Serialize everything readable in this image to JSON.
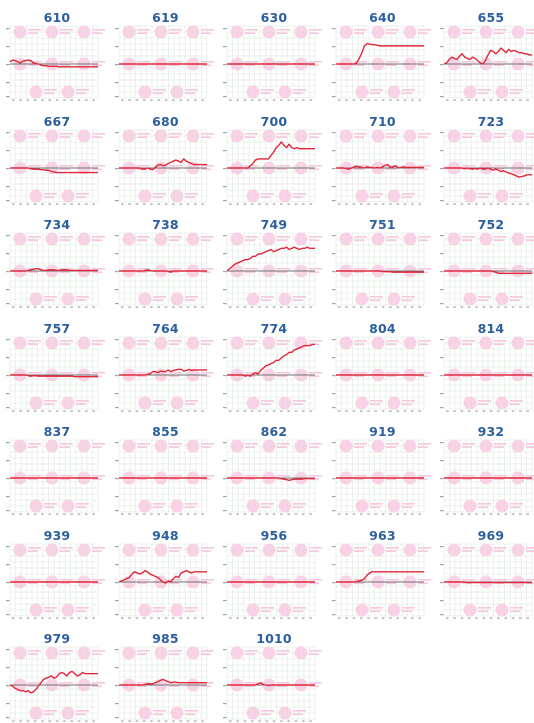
{
  "colors": {
    "title": "#2b5f9e",
    "series": "#e0283c",
    "baseline": "#707070",
    "grid": "#d8e6d8",
    "watermark": "#f7c6df",
    "axis_text": "#9aa3ad"
  },
  "watermark_icon": "circle-logo",
  "chart_data": [
    {
      "type": "line",
      "title": "610",
      "values": [
        0.2,
        0.35,
        0.3,
        0.2,
        0.1,
        0.25,
        0.3,
        0.35,
        0.3,
        0.1,
        0.05,
        0.0,
        -0.1,
        -0.15,
        -0.15,
        -0.2,
        -0.2,
        -0.2,
        -0.2,
        -0.25,
        -0.25,
        -0.25,
        -0.25,
        -0.25,
        -0.25,
        -0.25,
        -0.25,
        -0.25,
        -0.25,
        -0.25,
        -0.25,
        -0.25,
        -0.25,
        -0.25,
        -0.25
      ],
      "ylim": [
        -3,
        3
      ]
    },
    {
      "type": "line",
      "title": "619",
      "values": [
        0,
        0,
        0,
        0,
        0,
        0,
        0,
        0,
        0,
        0,
        0,
        0,
        0,
        0,
        0,
        0,
        0,
        0,
        0,
        0,
        0,
        0,
        0,
        0,
        0,
        0,
        0,
        0,
        0,
        0,
        0,
        0,
        0,
        0,
        0
      ],
      "ylim": [
        -3,
        3
      ]
    },
    {
      "type": "line",
      "title": "630",
      "values": [
        0,
        0,
        0,
        0,
        0,
        0,
        0,
        0,
        0,
        0,
        0,
        0,
        0,
        0,
        0,
        0,
        0,
        0,
        0,
        0,
        0,
        0,
        0,
        0,
        0,
        0,
        0,
        0,
        0,
        0,
        0,
        0,
        0,
        0,
        0
      ],
      "ylim": [
        -3,
        3
      ]
    },
    {
      "type": "line",
      "title": "640",
      "values": [
        0,
        0,
        0,
        0,
        0,
        0,
        0,
        0,
        0.1,
        0.5,
        1.0,
        1.6,
        1.8,
        1.75,
        1.7,
        1.7,
        1.65,
        1.6,
        1.6,
        1.6,
        1.6,
        1.6,
        1.6,
        1.6,
        1.6,
        1.6,
        1.6,
        1.6,
        1.6,
        1.6,
        1.6,
        1.6,
        1.6,
        1.6,
        1.6
      ],
      "ylim": [
        -3,
        3
      ]
    },
    {
      "type": "line",
      "title": "655",
      "values": [
        0,
        0.1,
        0.4,
        0.6,
        0.5,
        0.4,
        0.7,
        0.9,
        0.6,
        0.5,
        0.4,
        0.6,
        0.5,
        0.3,
        0.1,
        0.0,
        0.3,
        0.8,
        1.2,
        1.1,
        0.9,
        1.1,
        1.4,
        1.2,
        1.0,
        1.3,
        1.1,
        1.2,
        1.1,
        1.0,
        1.0,
        0.9,
        0.9,
        0.8,
        0.8
      ],
      "ylim": [
        -3,
        3
      ]
    },
    {
      "type": "line",
      "title": "667",
      "values": [
        0,
        0,
        0,
        0,
        0,
        0,
        0,
        0,
        -0.05,
        -0.1,
        -0.1,
        -0.1,
        -0.15,
        -0.15,
        -0.2,
        -0.2,
        -0.3,
        -0.35,
        -0.4,
        -0.4,
        -0.4,
        -0.4,
        -0.4,
        -0.4,
        -0.4,
        -0.4,
        -0.4,
        -0.4,
        -0.4,
        -0.4,
        -0.4,
        -0.4,
        -0.4,
        -0.4,
        -0.4
      ],
      "ylim": [
        -3,
        3
      ]
    },
    {
      "type": "line",
      "title": "680",
      "values": [
        0,
        0,
        0,
        0,
        0,
        0,
        0,
        0,
        0,
        -0.1,
        -0.1,
        0.0,
        -0.1,
        -0.15,
        0.05,
        0.25,
        0.3,
        0.2,
        0.25,
        0.4,
        0.5,
        0.6,
        0.7,
        0.6,
        0.5,
        0.8,
        0.6,
        0.5,
        0.4,
        0.3,
        0.3,
        0.3,
        0.3,
        0.3,
        0.3
      ],
      "ylim": [
        -3,
        3
      ]
    },
    {
      "type": "line",
      "title": "700",
      "values": [
        0,
        0,
        0,
        0,
        0,
        0,
        0,
        0,
        0,
        0.2,
        0.4,
        0.7,
        0.8,
        0.8,
        0.8,
        0.8,
        0.8,
        1.1,
        1.4,
        1.8,
        2.0,
        2.3,
        2.0,
        1.8,
        2.1,
        1.8,
        1.7,
        1.8,
        1.7,
        1.7,
        1.7,
        1.7,
        1.7,
        1.7,
        1.7
      ],
      "ylim": [
        -3,
        3
      ]
    },
    {
      "type": "line",
      "title": "710",
      "values": [
        0,
        0,
        0,
        0,
        -0.05,
        -0.1,
        0,
        0.1,
        0.15,
        0.1,
        0.05,
        0.0,
        0.1,
        0.05,
        0.05,
        0.0,
        0.05,
        0.0,
        0.1,
        0.25,
        0.3,
        0.05,
        0.1,
        0.2,
        0.0,
        0.05,
        0.1,
        0.05,
        0.05,
        0.05,
        0.05,
        0.05,
        0.05,
        0.05,
        0.05
      ],
      "ylim": [
        -3,
        3
      ]
    },
    {
      "type": "line",
      "title": "723",
      "values": [
        0,
        0,
        0,
        0,
        0,
        0,
        0,
        0,
        -0.05,
        0.0,
        -0.05,
        -0.1,
        -0.05,
        -0.1,
        0.0,
        -0.1,
        -0.1,
        0.0,
        -0.1,
        -0.2,
        -0.1,
        -0.2,
        -0.3,
        -0.25,
        -0.35,
        -0.45,
        -0.5,
        -0.6,
        -0.7,
        -0.8,
        -0.75,
        -0.7,
        -0.6,
        -0.6,
        -0.6
      ],
      "ylim": [
        -3,
        3
      ]
    },
    {
      "type": "line",
      "title": "734",
      "values": [
        0,
        0,
        0,
        0,
        0,
        0,
        0,
        0.05,
        0.1,
        0.15,
        0.2,
        0.2,
        0.1,
        0.05,
        0.05,
        0.1,
        0.1,
        0.1,
        0.05,
        0.05,
        0.1,
        0.1,
        0.1,
        0.05,
        0.05,
        0.05,
        0.05,
        0.05,
        0.05,
        0.05,
        0.05,
        0.05,
        0.05,
        0.05,
        0.05
      ],
      "ylim": [
        -3,
        3
      ]
    },
    {
      "type": "line",
      "title": "738",
      "values": [
        0,
        0,
        0,
        0,
        0,
        0,
        0,
        0,
        0,
        0,
        0.05,
        0.1,
        0.05,
        0,
        0,
        0,
        0,
        0,
        0,
        -0.05,
        -0.1,
        0,
        0,
        0,
        0,
        0,
        0,
        0,
        0,
        0,
        0,
        0,
        0,
        0,
        0
      ],
      "ylim": [
        -3,
        3
      ]
    },
    {
      "type": "line",
      "title": "749",
      "values": [
        0,
        0.2,
        0.4,
        0.6,
        0.7,
        0.8,
        0.9,
        1.0,
        1.0,
        1.1,
        1.3,
        1.3,
        1.5,
        1.5,
        1.6,
        1.7,
        1.8,
        1.9,
        1.7,
        1.8,
        1.9,
        2.0,
        2.0,
        2.1,
        1.9,
        2.0,
        2.1,
        2.0,
        1.9,
        2.0,
        2.0,
        2.1,
        2.0,
        2.0,
        2.0
      ],
      "ylim": [
        -3,
        3
      ]
    },
    {
      "type": "line",
      "title": "751",
      "values": [
        0,
        0,
        0,
        0,
        0,
        0,
        0,
        0,
        0,
        0,
        0,
        0,
        0,
        0,
        0,
        0,
        0,
        0,
        -0.05,
        -0.05,
        -0.05,
        -0.05,
        -0.1,
        -0.1,
        -0.1,
        -0.1,
        -0.1,
        -0.1,
        -0.1,
        -0.1,
        -0.1,
        -0.1,
        -0.1,
        -0.1,
        -0.1
      ],
      "ylim": [
        -3,
        3
      ]
    },
    {
      "type": "line",
      "title": "752",
      "values": [
        0,
        0,
        0,
        0,
        0,
        0,
        0,
        0,
        0,
        0,
        0,
        0,
        0,
        0,
        0,
        0,
        0,
        0,
        0,
        -0.05,
        -0.1,
        -0.2,
        -0.2,
        -0.2,
        -0.2,
        -0.2,
        -0.2,
        -0.2,
        -0.2,
        -0.2,
        -0.2,
        -0.2,
        -0.2,
        -0.2,
        -0.2
      ],
      "ylim": [
        -3,
        3
      ]
    },
    {
      "type": "line",
      "title": "757",
      "values": [
        0,
        0,
        0,
        0,
        0,
        0,
        0,
        -0.05,
        -0.1,
        -0.05,
        -0.05,
        -0.1,
        -0.1,
        -0.1,
        -0.1,
        -0.1,
        -0.1,
        -0.1,
        -0.1,
        -0.1,
        -0.1,
        -0.1,
        -0.1,
        -0.1,
        -0.1,
        -0.15,
        -0.15,
        -0.15,
        -0.15,
        -0.15,
        -0.15,
        -0.15,
        -0.15,
        -0.15,
        -0.15
      ],
      "ylim": [
        -3,
        3
      ]
    },
    {
      "type": "line",
      "title": "764",
      "values": [
        0,
        0,
        0,
        0,
        0,
        0,
        0,
        0,
        0,
        0,
        0,
        0.05,
        0.1,
        0.3,
        0.3,
        0.2,
        0.35,
        0.3,
        0.3,
        0.45,
        0.3,
        0.4,
        0.45,
        0.5,
        0.5,
        0.35,
        0.4,
        0.5,
        0.4,
        0.45,
        0.45,
        0.45,
        0.45,
        0.45,
        0.45
      ],
      "ylim": [
        -3,
        3
      ]
    },
    {
      "type": "line",
      "title": "774",
      "values": [
        0,
        0,
        0,
        0,
        0,
        0,
        0,
        -0.1,
        0.0,
        -0.1,
        0.1,
        0.2,
        0.1,
        0.4,
        0.6,
        0.8,
        0.9,
        1.0,
        1.1,
        1.3,
        1.3,
        1.5,
        1.7,
        1.8,
        2.0,
        2.0,
        2.2,
        2.3,
        2.4,
        2.5,
        2.6,
        2.6,
        2.6,
        2.7,
        2.7
      ],
      "ylim": [
        -3,
        3
      ]
    },
    {
      "type": "line",
      "title": "804",
      "values": [
        0,
        0,
        0,
        0,
        0,
        0,
        0,
        0,
        0,
        0,
        0,
        0,
        0,
        0,
        0,
        0,
        0,
        0,
        0,
        0,
        0,
        0,
        0,
        0,
        0,
        0,
        0,
        0,
        0,
        0,
        0,
        0,
        0,
        0,
        0
      ],
      "ylim": [
        -3,
        3
      ]
    },
    {
      "type": "line",
      "title": "814",
      "values": [
        0,
        0,
        0,
        0,
        0,
        0,
        0,
        0,
        0,
        0,
        0,
        0,
        0,
        0,
        0,
        0,
        0,
        0,
        0,
        0,
        0,
        0,
        0,
        0,
        0,
        0,
        0,
        0,
        0,
        0,
        0,
        0,
        0,
        0,
        0
      ],
      "ylim": [
        -3,
        3
      ]
    },
    {
      "type": "line",
      "title": "837",
      "values": [
        0,
        0,
        0,
        0,
        0,
        0,
        0,
        0,
        0,
        0,
        0,
        0,
        0,
        0,
        0,
        0,
        0,
        0,
        0,
        0,
        0,
        0,
        0,
        0,
        0,
        0,
        0,
        0,
        0,
        0,
        0,
        0,
        0,
        0,
        0
      ],
      "ylim": [
        -3,
        3
      ]
    },
    {
      "type": "line",
      "title": "855",
      "values": [
        0,
        0,
        0,
        0,
        0,
        0,
        0,
        0,
        0,
        0,
        0,
        0,
        0,
        0,
        0,
        0,
        0,
        0,
        0,
        0,
        0,
        0,
        0,
        0,
        0,
        0,
        0,
        0,
        0,
        0,
        0,
        0,
        0,
        0,
        0
      ],
      "ylim": [
        -3,
        3
      ]
    },
    {
      "type": "line",
      "title": "862",
      "values": [
        0,
        0,
        0,
        0,
        0,
        0,
        0,
        0,
        0,
        0,
        0,
        0,
        0,
        0,
        0,
        0,
        0,
        0,
        0,
        0,
        0,
        -0.05,
        -0.1,
        -0.15,
        -0.2,
        -0.15,
        -0.1,
        -0.1,
        -0.1,
        -0.1,
        -0.05,
        -0.05,
        -0.05,
        -0.05,
        -0.05
      ],
      "ylim": [
        -3,
        3
      ]
    },
    {
      "type": "line",
      "title": "919",
      "values": [
        0,
        0,
        0,
        0,
        0,
        0,
        0,
        0,
        0,
        0,
        0,
        0,
        0,
        0,
        0,
        0,
        0,
        0,
        0,
        0,
        0,
        0,
        0,
        0,
        0,
        0,
        0,
        0,
        0,
        0,
        0,
        0,
        0,
        0,
        0
      ],
      "ylim": [
        -3,
        3
      ]
    },
    {
      "type": "line",
      "title": "932",
      "values": [
        0,
        0,
        0,
        0,
        0,
        0,
        0,
        0,
        0,
        0,
        0,
        0,
        0,
        0,
        0,
        0,
        0,
        0,
        0,
        0,
        0,
        0,
        0,
        0,
        0,
        0,
        0,
        0,
        0,
        0,
        0,
        0,
        0,
        0,
        0
      ],
      "ylim": [
        -3,
        3
      ]
    },
    {
      "type": "line",
      "title": "939",
      "values": [
        0,
        0,
        0,
        0,
        0,
        0,
        0,
        0,
        0,
        0,
        0,
        0,
        0,
        0,
        0,
        0,
        0,
        0,
        0,
        0,
        0,
        0,
        0,
        0,
        0,
        0,
        0,
        0,
        0,
        0,
        0,
        0,
        0,
        0,
        0
      ],
      "ylim": [
        -3,
        3
      ]
    },
    {
      "type": "line",
      "title": "948",
      "values": [
        0,
        0.1,
        0.2,
        0.3,
        0.4,
        0.7,
        0.9,
        0.8,
        0.7,
        0.8,
        1.0,
        0.9,
        0.7,
        0.6,
        0.5,
        0.4,
        0.2,
        0.0,
        -0.1,
        0.1,
        0.0,
        0.3,
        0.5,
        0.4,
        0.8,
        0.9,
        1.0,
        0.9,
        0.8,
        0.9,
        0.9,
        0.9,
        0.9,
        0.9,
        0.9
      ],
      "ylim": [
        -3,
        3
      ]
    },
    {
      "type": "line",
      "title": "956",
      "values": [
        0,
        0,
        0,
        0,
        0,
        0,
        0,
        0,
        0,
        0,
        0,
        0,
        0,
        0,
        0,
        0,
        0,
        0,
        0,
        0,
        0,
        0,
        0,
        0,
        0,
        0,
        0,
        0,
        0,
        0,
        0,
        0,
        0,
        0,
        0
      ],
      "ylim": [
        -3,
        3
      ]
    },
    {
      "type": "line",
      "title": "963",
      "values": [
        0,
        0,
        0,
        0,
        0,
        0,
        0,
        0,
        0.05,
        0.1,
        0.15,
        0.3,
        0.6,
        0.8,
        0.9,
        0.9,
        0.9,
        0.9,
        0.9,
        0.9,
        0.9,
        0.9,
        0.9,
        0.9,
        0.9,
        0.9,
        0.9,
        0.9,
        0.9,
        0.9,
        0.9,
        0.9,
        0.9,
        0.9,
        0.9
      ],
      "ylim": [
        -3,
        3
      ]
    },
    {
      "type": "line",
      "title": "969",
      "values": [
        0,
        0,
        0,
        0,
        0,
        0,
        0,
        0,
        0,
        -0.05,
        -0.05,
        -0.05,
        -0.05,
        -0.05,
        -0.05,
        -0.05,
        -0.05,
        -0.05,
        -0.05,
        -0.05,
        -0.05,
        -0.05,
        -0.05,
        -0.05,
        -0.05,
        -0.05,
        -0.05,
        -0.05,
        -0.05,
        -0.05,
        -0.05,
        -0.05,
        -0.05,
        -0.05,
        -0.05
      ],
      "ylim": [
        -3,
        3
      ]
    },
    {
      "type": "line",
      "title": "979",
      "values": [
        0,
        -0.1,
        -0.3,
        -0.4,
        -0.5,
        -0.5,
        -0.6,
        -0.5,
        -0.7,
        -0.6,
        -0.4,
        -0.1,
        0.2,
        0.5,
        0.6,
        0.7,
        0.8,
        0.6,
        0.7,
        1.0,
        1.1,
        1.0,
        0.8,
        1.1,
        1.2,
        1.0,
        0.8,
        0.9,
        1.1,
        1.0,
        1.0,
        1.0,
        1.0,
        1.0,
        1.0
      ],
      "ylim": [
        -3,
        3
      ]
    },
    {
      "type": "line",
      "title": "985",
      "values": [
        0,
        0,
        0,
        0,
        0,
        0,
        0,
        0,
        0,
        0,
        0.05,
        0.1,
        0.1,
        0.1,
        0.2,
        0.3,
        0.4,
        0.5,
        0.4,
        0.3,
        0.2,
        0.25,
        0.25,
        0.2,
        0.2,
        0.2,
        0.2,
        0.2,
        0.2,
        0.2,
        0.2,
        0.2,
        0.2,
        0.2,
        0.2
      ],
      "ylim": [
        -3,
        3
      ]
    },
    {
      "type": "line",
      "title": "1010",
      "values": [
        0,
        0,
        0,
        0,
        0,
        0,
        0,
        0,
        0,
        0,
        0,
        0,
        0.1,
        0.2,
        0.05,
        0.0,
        -0.05,
        0.0,
        0.0,
        0.0,
        0.0,
        0.0,
        0.0,
        0.0,
        0.0,
        0.0,
        0.0,
        0.0,
        0.0,
        0.0,
        0.0,
        0.0,
        0.0,
        0.0,
        0.0
      ],
      "ylim": [
        -3,
        3
      ]
    }
  ]
}
